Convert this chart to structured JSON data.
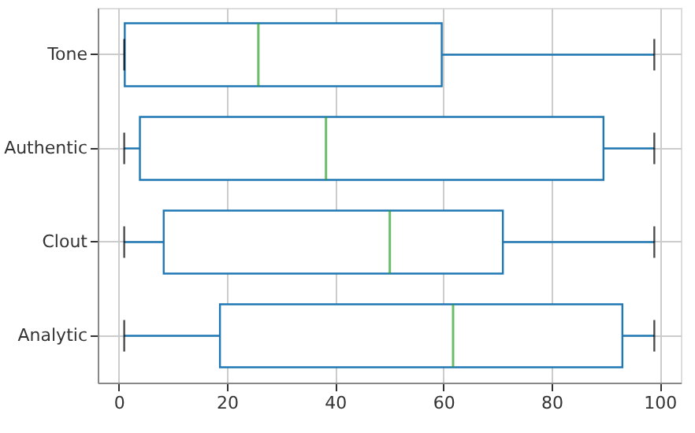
{
  "chart_data": {
    "type": "box",
    "orientation": "horizontal",
    "categories": [
      "Tone",
      "Authentic",
      "Clout",
      "Analytic"
    ],
    "series": [
      {
        "color": "#1f77b4",
        "boxes": [
          {
            "low": 1,
            "q1": 1.1,
            "median": 25.8,
            "q3": 59.7,
            "high": 99
          },
          {
            "low": 1,
            "q1": 3.9,
            "median": 38.3,
            "q3": 89.6,
            "high": 99
          },
          {
            "low": 1,
            "q1": 8.3,
            "median": 50.1,
            "q3": 71,
            "high": 99
          },
          {
            "low": 1,
            "q1": 18.7,
            "median": 61.8,
            "q3": 93.1,
            "high": 99
          }
        ]
      }
    ],
    "xlim": [
      -3.9,
      103.9
    ],
    "xticks": [
      0,
      20,
      40,
      60,
      80,
      100
    ],
    "grid": true
  }
}
